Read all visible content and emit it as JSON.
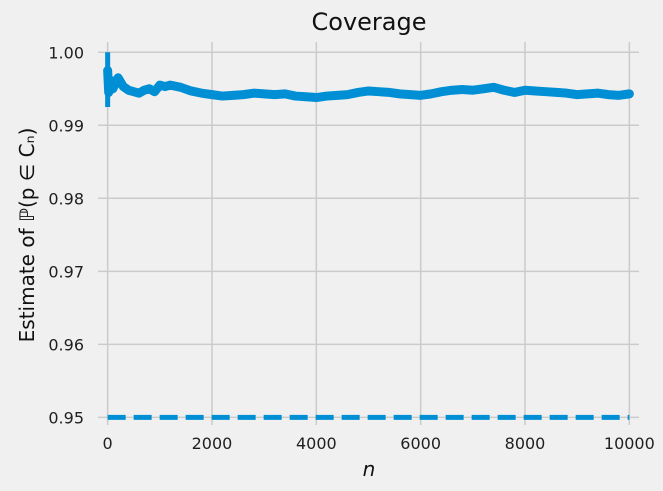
{
  "chart_data": {
    "type": "line",
    "title": "Coverage",
    "xlabel": "n",
    "ylabel": "Estimate of ℙ(p ∈ Cₙ)",
    "xlim": [
      -300,
      10300
    ],
    "ylim": [
      0.948,
      1.0025
    ],
    "xticks": [
      0,
      2000,
      4000,
      6000,
      8000,
      10000
    ],
    "yticks": [
      0.95,
      0.96,
      0.97,
      0.98,
      0.99,
      1.0
    ],
    "xtick_labels": [
      "0",
      "2000",
      "4000",
      "6000",
      "8000",
      "10000"
    ],
    "ytick_labels": [
      "0.95",
      "0.96",
      "0.97",
      "0.98",
      "0.99",
      "1.00"
    ],
    "grid": true,
    "series": [
      {
        "style": "solid-thick",
        "color": "#008fd5",
        "x": [
          0,
          20,
          50,
          100,
          150,
          200,
          300,
          400,
          500,
          600,
          700,
          800,
          900,
          1000,
          1100,
          1200,
          1400,
          1600,
          1800,
          2000,
          2200,
          2400,
          2600,
          2800,
          3000,
          3200,
          3400,
          3600,
          3800,
          4000,
          4200,
          4400,
          4600,
          4800,
          5000,
          5200,
          5400,
          5600,
          5800,
          6000,
          6200,
          6400,
          6600,
          6800,
          7000,
          7200,
          7400,
          7600,
          7800,
          8000,
          8200,
          8400,
          8600,
          8800,
          9000,
          9200,
          9400,
          9600,
          9800,
          10000
        ],
        "y": [
          0.9975,
          0.9945,
          0.9962,
          0.995,
          0.9958,
          0.9965,
          0.9953,
          0.9948,
          0.9946,
          0.9944,
          0.9948,
          0.995,
          0.9946,
          0.9955,
          0.9953,
          0.9955,
          0.9952,
          0.9947,
          0.9944,
          0.9942,
          0.994,
          0.9941,
          0.9942,
          0.9944,
          0.9943,
          0.9942,
          0.9943,
          0.994,
          0.9939,
          0.9938,
          0.994,
          0.9941,
          0.9942,
          0.9945,
          0.9947,
          0.9946,
          0.9945,
          0.9943,
          0.9942,
          0.9941,
          0.9943,
          0.9946,
          0.9948,
          0.9949,
          0.9948,
          0.995,
          0.9952,
          0.9948,
          0.9945,
          0.9948,
          0.9947,
          0.9946,
          0.9945,
          0.9944,
          0.9942,
          0.9943,
          0.9944,
          0.9942,
          0.9941,
          0.9943
        ]
      },
      {
        "style": "dashed",
        "color": "#008fd5",
        "x": [
          0,
          10000
        ],
        "y": [
          0.95,
          0.95
        ]
      }
    ]
  }
}
